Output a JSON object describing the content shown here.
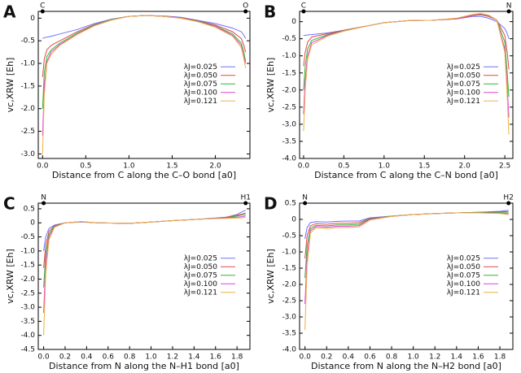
{
  "chart_data": [
    {
      "type": "line",
      "panel_label": "A",
      "y_label": "vc,XRW  [Eh]",
      "x_label": "Distance from C along the C–O bond  [a0]",
      "atoms": [
        {
          "label": "C",
          "x": 0
        },
        {
          "label": "O",
          "x": 2.35
        }
      ],
      "xlim": [
        -0.05,
        2.4
      ],
      "xticks": [
        {
          "value": 0,
          "label": "0.0"
        },
        {
          "value": 0.5,
          "label": "0.5"
        },
        {
          "value": 1,
          "label": "1.0"
        },
        {
          "value": 1.5,
          "label": "1.5"
        },
        {
          "value": 2,
          "label": "2.0"
        }
      ],
      "ylim": [
        -3.1,
        0.15
      ],
      "yticks": [
        0,
        -0.5,
        {
          "value": -1,
          "label": "-1.0"
        },
        -1.5,
        {
          "value": -2,
          "label": "-2.0"
        },
        -2.5,
        {
          "value": -3,
          "label": "-3.0"
        }
      ],
      "legend": "center right",
      "x": [
        0,
        0.02,
        0.05,
        0.1,
        0.2,
        0.4,
        0.6,
        0.8,
        1.0,
        1.2,
        1.4,
        1.6,
        1.8,
        2.0,
        2.2,
        2.3,
        2.33,
        2.35
      ],
      "series": [
        {
          "name": "λJ=0.025",
          "color": "#7070ff",
          "values": [
            -0.45,
            -0.43,
            -0.42,
            -0.4,
            -0.35,
            -0.25,
            -0.12,
            -0.02,
            0.04,
            0.06,
            0.05,
            0.02,
            -0.05,
            -0.12,
            -0.22,
            -0.3,
            -0.38,
            -0.45
          ]
        },
        {
          "name": "λJ=0.050",
          "color": "#e04848",
          "values": [
            -1.3,
            -0.9,
            -0.7,
            -0.6,
            -0.5,
            -0.3,
            -0.14,
            -0.03,
            0.04,
            0.06,
            0.04,
            0.01,
            -0.06,
            -0.15,
            -0.3,
            -0.45,
            -0.6,
            -0.75
          ]
        },
        {
          "name": "λJ=0.075",
          "color": "#30b830",
          "values": [
            -2.0,
            -1.2,
            -0.85,
            -0.7,
            -0.55,
            -0.33,
            -0.15,
            -0.03,
            0.04,
            0.06,
            0.04,
            0.0,
            -0.07,
            -0.17,
            -0.35,
            -0.55,
            -0.75,
            -0.95
          ]
        },
        {
          "name": "λJ=0.100",
          "color": "#e040e0",
          "values": [
            -2.6,
            -1.5,
            -0.95,
            -0.75,
            -0.58,
            -0.35,
            -0.16,
            -0.04,
            0.04,
            0.06,
            0.04,
            0.0,
            -0.08,
            -0.18,
            -0.38,
            -0.6,
            -0.85,
            -1.0
          ]
        },
        {
          "name": "λJ=0.121",
          "color": "#f0b040",
          "values": [
            -3.0,
            -1.7,
            -1.0,
            -0.8,
            -0.6,
            -0.36,
            -0.17,
            -0.04,
            0.04,
            0.06,
            0.04,
            0.0,
            -0.08,
            -0.2,
            -0.4,
            -0.65,
            -0.9,
            -1.1
          ]
        }
      ]
    },
    {
      "type": "line",
      "panel_label": "B",
      "y_label": "vc,XRW  [Eh]",
      "x_label": "Distance from C along the C–N bond  [a0]",
      "atoms": [
        {
          "label": "C",
          "x": 0
        },
        {
          "label": "N",
          "x": 2.55
        }
      ],
      "xlim": [
        -0.05,
        2.6
      ],
      "xticks": [
        {
          "value": 0,
          "label": "0.0"
        },
        {
          "value": 0.5,
          "label": "0.5"
        },
        {
          "value": 1,
          "label": "1.0"
        },
        {
          "value": 1.5,
          "label": "1.5"
        },
        {
          "value": 2,
          "label": "2.0"
        },
        {
          "value": 2.5,
          "label": "2.5"
        }
      ],
      "ylim": [
        -4,
        0.3
      ],
      "yticks": [
        0,
        -0.5,
        {
          "value": -1,
          "label": "-1.0"
        },
        -1.5,
        {
          "value": -2,
          "label": "-2.0"
        },
        -2.5,
        {
          "value": -3,
          "label": "-3.0"
        },
        -3.5,
        {
          "value": -4,
          "label": "-4.0"
        }
      ],
      "legend": "center right",
      "x": [
        0,
        0.02,
        0.05,
        0.1,
        0.3,
        0.5,
        0.8,
        1.0,
        1.3,
        1.6,
        1.9,
        2.1,
        2.2,
        2.3,
        2.4,
        2.5,
        2.53,
        2.55
      ],
      "series": [
        {
          "name": "λJ=0.025",
          "color": "#7070ff",
          "values": [
            -0.4,
            -0.4,
            -0.39,
            -0.38,
            -0.33,
            -0.25,
            -0.12,
            -0.03,
            0.03,
            0.04,
            0.08,
            0.15,
            0.15,
            0.1,
            0.0,
            -0.2,
            -0.35,
            -0.5
          ]
        },
        {
          "name": "λJ=0.050",
          "color": "#e04848",
          "values": [
            -1.3,
            -0.9,
            -0.6,
            -0.45,
            -0.35,
            -0.25,
            -0.12,
            -0.03,
            0.03,
            0.04,
            0.08,
            0.18,
            0.2,
            0.15,
            0.05,
            -0.4,
            -0.9,
            -1.4
          ]
        },
        {
          "name": "λJ=0.075",
          "color": "#30b830",
          "values": [
            -2.0,
            -1.3,
            -0.8,
            -0.55,
            -0.38,
            -0.26,
            -0.12,
            -0.03,
            0.03,
            0.04,
            0.09,
            0.2,
            0.22,
            0.17,
            0.05,
            -0.6,
            -1.5,
            -2.2
          ]
        },
        {
          "name": "λJ=0.100",
          "color": "#e040e0",
          "values": [
            -2.7,
            -1.7,
            -1.0,
            -0.62,
            -0.4,
            -0.27,
            -0.12,
            -0.03,
            0.03,
            0.04,
            0.09,
            0.2,
            0.23,
            0.18,
            0.05,
            -0.8,
            -1.9,
            -2.8
          ]
        },
        {
          "name": "λJ=0.121",
          "color": "#f0b040",
          "values": [
            -3.2,
            -2.0,
            -1.1,
            -0.68,
            -0.42,
            -0.28,
            -0.12,
            -0.03,
            0.03,
            0.04,
            0.1,
            0.21,
            0.24,
            0.19,
            0.05,
            -0.9,
            -2.2,
            -3.3
          ]
        }
      ]
    },
    {
      "type": "line",
      "panel_label": "C",
      "y_label": "vc,XRW  [Eh]",
      "x_label": "Distance from N along the N–H1 bond  [a0]",
      "atoms": [
        {
          "label": "N",
          "x": 0
        },
        {
          "label": "H1",
          "x": 1.88
        }
      ],
      "xlim": [
        -0.05,
        1.92
      ],
      "xticks": [
        {
          "value": 0,
          "label": "0.0"
        },
        0.2,
        0.4,
        0.6,
        0.8,
        {
          "value": 1,
          "label": "1.0"
        },
        1.2,
        1.4,
        1.6,
        1.8
      ],
      "ylim": [
        -4.5,
        0.7
      ],
      "yticks": [
        0.5,
        0,
        -0.5,
        {
          "value": -1,
          "label": "-1.0"
        },
        -1.5,
        {
          "value": -2,
          "label": "-2.0"
        },
        -2.5,
        {
          "value": -3,
          "label": "-3.0"
        },
        -3.5,
        {
          "value": -4,
          "label": "-4.0"
        },
        -4.5
      ],
      "legend": "center right",
      "x": [
        0,
        0.02,
        0.05,
        0.1,
        0.2,
        0.35,
        0.5,
        0.8,
        1.0,
        1.2,
        1.4,
        1.6,
        1.7,
        1.8,
        1.85,
        1.88
      ],
      "series": [
        {
          "name": "λJ=0.025",
          "color": "#7070ff",
          "values": [
            -1.0,
            -0.5,
            -0.2,
            -0.08,
            0.0,
            0.03,
            0.0,
            -0.02,
            0.03,
            0.08,
            0.12,
            0.17,
            0.2,
            0.3,
            0.4,
            0.45
          ]
        },
        {
          "name": "λJ=0.050",
          "color": "#e04848",
          "values": [
            -1.6,
            -0.8,
            -0.3,
            -0.1,
            0.0,
            0.04,
            0.0,
            -0.02,
            0.03,
            0.08,
            0.12,
            0.16,
            0.2,
            0.27,
            0.32,
            0.35
          ]
        },
        {
          "name": "λJ=0.075",
          "color": "#30b830",
          "values": [
            -2.3,
            -1.1,
            -0.4,
            -0.12,
            0.0,
            0.04,
            0.0,
            -0.02,
            0.03,
            0.08,
            0.12,
            0.16,
            0.18,
            0.24,
            0.28,
            0.3
          ]
        },
        {
          "name": "λJ=0.100",
          "color": "#e040e0",
          "values": [
            -3.2,
            -1.4,
            -0.5,
            -0.14,
            0.0,
            0.04,
            0.0,
            -0.02,
            0.03,
            0.08,
            0.12,
            0.16,
            0.17,
            0.2,
            0.22,
            0.25
          ]
        },
        {
          "name": "λJ=0.121",
          "color": "#f0b040",
          "values": [
            -4.0,
            -1.8,
            -0.6,
            -0.16,
            0.0,
            0.04,
            0.0,
            -0.02,
            0.03,
            0.08,
            0.12,
            0.15,
            0.16,
            0.17,
            0.18,
            0.2
          ]
        }
      ]
    },
    {
      "type": "line",
      "panel_label": "D",
      "y_label": "vc,XRW  [Eh]",
      "x_label": "Distance from N along the N–H2 bond  [a0]",
      "atoms": [
        {
          "label": "N",
          "x": 0
        },
        {
          "label": "H2",
          "x": 1.88
        }
      ],
      "xlim": [
        -0.05,
        1.92
      ],
      "xticks": [
        {
          "value": 0,
          "label": "0.0"
        },
        0.2,
        0.4,
        0.6,
        0.8,
        {
          "value": 1,
          "label": "1.0"
        },
        1.2,
        1.4,
        1.6,
        1.8
      ],
      "ylim": [
        -4,
        0.5
      ],
      "yticks": [
        0.5,
        0,
        -0.5,
        {
          "value": -1,
          "label": "-1.0"
        },
        -1.5,
        {
          "value": -2,
          "label": "-2.0"
        },
        -2.5,
        {
          "value": -3,
          "label": "-3.0"
        },
        -3.5,
        {
          "value": -4,
          "label": "-4.0"
        }
      ],
      "legend": "center right",
      "x": [
        0,
        0.02,
        0.05,
        0.1,
        0.2,
        0.3,
        0.4,
        0.5,
        0.6,
        0.8,
        1.0,
        1.2,
        1.4,
        1.6,
        1.8,
        1.88
      ],
      "series": [
        {
          "name": "λJ=0.025",
          "color": "#7070ff",
          "values": [
            -0.6,
            -0.25,
            -0.1,
            -0.07,
            -0.08,
            -0.06,
            -0.05,
            -0.05,
            0.05,
            0.1,
            0.15,
            0.18,
            0.2,
            0.22,
            0.25,
            0.28
          ]
        },
        {
          "name": "λJ=0.050",
          "color": "#e04848",
          "values": [
            -1.2,
            -0.5,
            -0.2,
            -0.13,
            -0.15,
            -0.12,
            -0.12,
            -0.1,
            0.03,
            0.1,
            0.15,
            0.18,
            0.2,
            0.22,
            0.23,
            0.24
          ]
        },
        {
          "name": "λJ=0.075",
          "color": "#30b830",
          "values": [
            -1.8,
            -0.8,
            -0.28,
            -0.18,
            -0.2,
            -0.17,
            -0.17,
            -0.15,
            0.02,
            0.1,
            0.15,
            0.18,
            0.2,
            0.21,
            0.21,
            0.2
          ]
        },
        {
          "name": "λJ=0.100",
          "color": "#e040e0",
          "values": [
            -2.6,
            -1.1,
            -0.35,
            -0.22,
            -0.24,
            -0.21,
            -0.21,
            -0.19,
            0.0,
            0.09,
            0.15,
            0.18,
            0.2,
            0.2,
            0.19,
            0.17
          ]
        },
        {
          "name": "λJ=0.121",
          "color": "#f0b040",
          "values": [
            -3.4,
            -1.4,
            -0.42,
            -0.26,
            -0.28,
            -0.25,
            -0.25,
            -0.23,
            -0.02,
            0.09,
            0.15,
            0.18,
            0.2,
            0.2,
            0.18,
            0.15
          ]
        }
      ]
    }
  ]
}
